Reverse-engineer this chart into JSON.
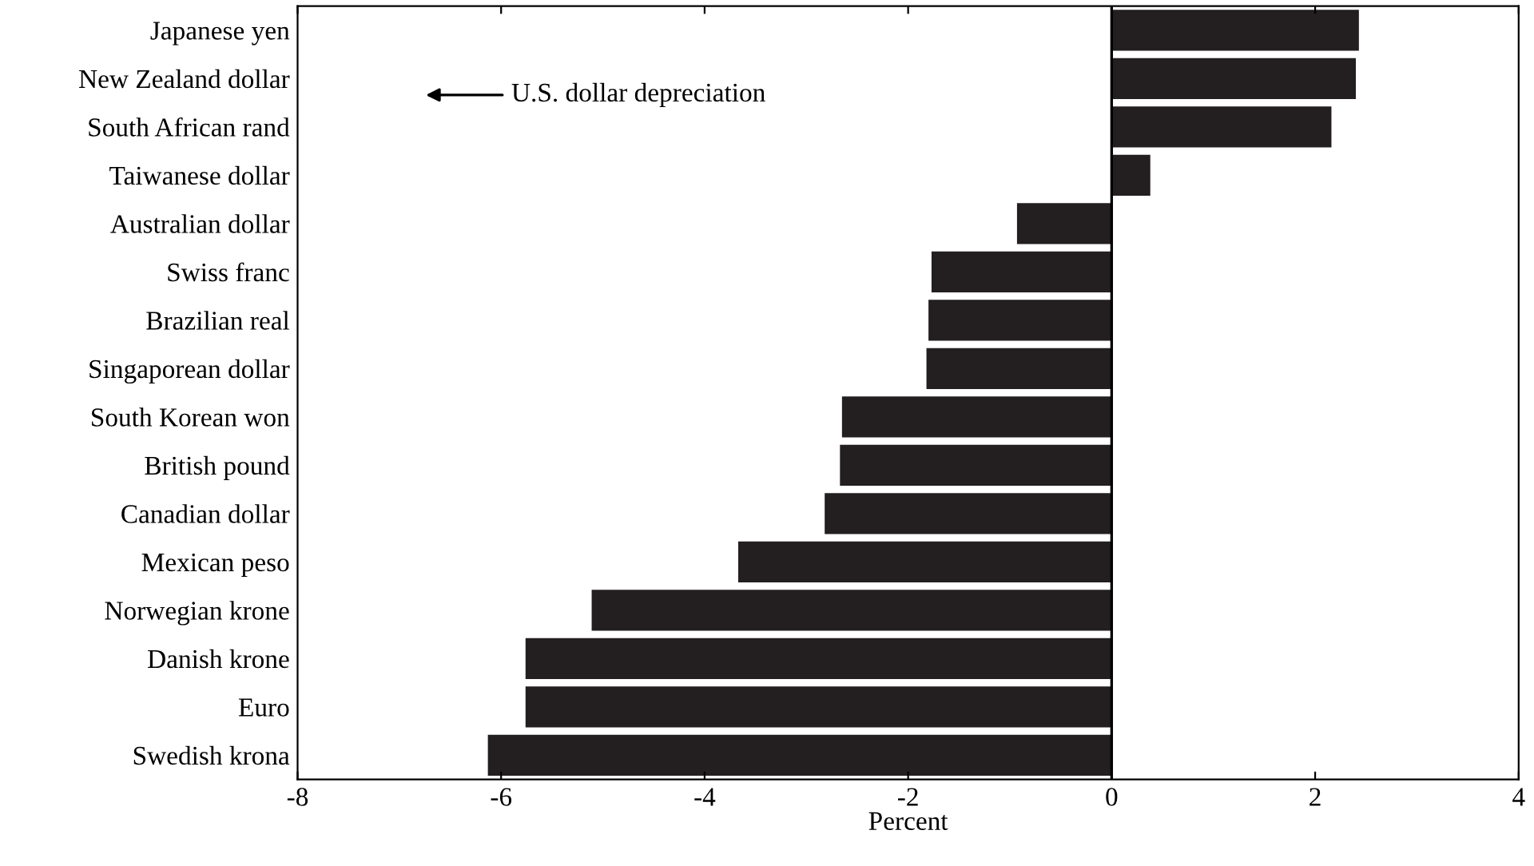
{
  "chart_data": {
    "type": "bar",
    "orientation": "horizontal",
    "xlabel": "Percent",
    "categories": [
      "Japanese yen",
      "New Zealand dollar",
      "South African rand",
      "Taiwanese dollar",
      "Australian dollar",
      "Swiss franc",
      "Brazilian real",
      "Singaporean dollar",
      "South Korean won",
      "British pound",
      "Canadian dollar",
      "Mexican peso",
      "Norwegian krone",
      "Danish krone",
      "Euro",
      "Swedish krona"
    ],
    "values": [
      2.43,
      2.4,
      2.16,
      0.38,
      -0.93,
      -1.77,
      -1.8,
      -1.82,
      -2.65,
      -2.67,
      -2.82,
      -3.67,
      -5.11,
      -5.76,
      -5.76,
      -6.13
    ],
    "color": "#231f20",
    "xlim": [
      -8,
      4
    ],
    "xticks": [
      -8,
      -6,
      -4,
      -2,
      0,
      2,
      4
    ],
    "ref_lines": [
      {
        "axis": "x",
        "value": 0,
        "color": "#000000"
      }
    ],
    "annotations": [
      "U.S. dollar depreciation"
    ],
    "grid": false,
    "legend": false
  }
}
